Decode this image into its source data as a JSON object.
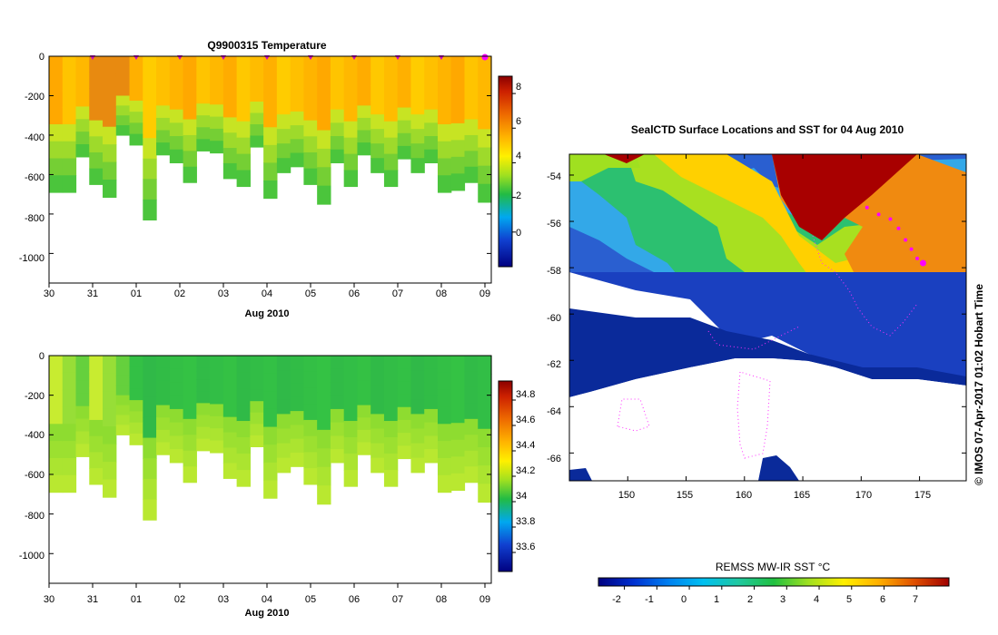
{
  "chart_data": [
    {
      "type": "heatmap",
      "title": "Q9900315  Temperature",
      "xlabel": "Aug 2010",
      "ylabel": "",
      "x_ticks": [
        "30",
        "31",
        "01",
        "02",
        "03",
        "04",
        "05",
        "06",
        "07",
        "08",
        "09"
      ],
      "x_range_days": [
        0,
        10
      ],
      "ylim": [
        -1150,
        0
      ],
      "y_ticks": [
        0,
        -200,
        -400,
        -600,
        -800,
        -1000
      ],
      "y_tick_labels": [
        "0",
        "-200",
        "-400",
        "-600",
        "-800",
        "-1000"
      ],
      "colorbar": {
        "min": -2,
        "max": 9,
        "ticks": [
          8,
          6,
          4,
          2,
          0
        ],
        "labels": [
          "8",
          "6",
          "4",
          "2",
          "0"
        ]
      },
      "profile_markers_days": [
        1,
        2,
        3,
        4,
        5,
        6,
        7,
        8,
        9,
        10
      ],
      "profile_max_depth_m": [
        690,
        690,
        510,
        650,
        715,
        400,
        450,
        830,
        500,
        540,
        640,
        480,
        490,
        620,
        660,
        460,
        720,
        590,
        560,
        650,
        750,
        540,
        660,
        500,
        590,
        660,
        520,
        590,
        540,
        690,
        680,
        640,
        740
      ],
      "surface_value_c": 5.5,
      "mid_value_c": 3.0,
      "deep_value_c": 2.0
    },
    {
      "type": "heatmap",
      "title": "",
      "xlabel": "Aug 2010",
      "ylabel": "",
      "x_ticks": [
        "30",
        "31",
        "01",
        "02",
        "03",
        "04",
        "05",
        "06",
        "07",
        "08",
        "09"
      ],
      "x_range_days": [
        0,
        10
      ],
      "ylim": [
        -1150,
        0
      ],
      "y_ticks": [
        0,
        -200,
        -400,
        -600,
        -800,
        -1000
      ],
      "y_tick_labels": [
        "0",
        "-200",
        "-400",
        "-600",
        "-800",
        "-1000"
      ],
      "colorbar": {
        "min": 33.45,
        "max": 34.95,
        "ticks": [
          34.8,
          34.6,
          34.4,
          34.2,
          34.0,
          33.8,
          33.6
        ],
        "labels": [
          "34.8",
          "34.6",
          "34.4",
          "34.2",
          "34",
          "33.8",
          "33.6"
        ]
      },
      "profile_max_depth_m": [
        690,
        690,
        510,
        650,
        715,
        400,
        450,
        830,
        500,
        540,
        640,
        480,
        490,
        620,
        660,
        460,
        720,
        590,
        560,
        650,
        750,
        540,
        660,
        500,
        590,
        660,
        520,
        590,
        540,
        690,
        680,
        640,
        740
      ],
      "surface_value": 34.1,
      "deep_value": 34.35
    },
    {
      "type": "heatmap",
      "title": "SealCTD Surface Locations and SST for 04 Aug 2010",
      "xlabel": "",
      "ylabel": "",
      "x_ticks": [
        150,
        155,
        160,
        165,
        170,
        175
      ],
      "x_tick_labels": [
        "150",
        "155",
        "160",
        "165",
        "170",
        "175"
      ],
      "xlim": [
        145.0,
        179.0
      ],
      "y_ticks": [
        -54,
        -56,
        -58,
        -60,
        -62,
        -64,
        -66
      ],
      "y_tick_labels": [
        "-54",
        "-56",
        "-58",
        "-60",
        "-62",
        "-64",
        "-66"
      ],
      "ylim": [
        -67.2,
        -53.1
      ],
      "colorbar": {
        "title": "REMSS MW-IR SST °C",
        "min": -2.8,
        "max": 8.0,
        "ticks": [
          -2,
          -1,
          0,
          1,
          2,
          3,
          4,
          5,
          6,
          7
        ],
        "labels": [
          "-2",
          "-1",
          "0",
          "1",
          "2",
          "3",
          "4",
          "5",
          "6",
          "7"
        ]
      },
      "seal_track_lon": [
        170.5,
        171.5,
        172.5,
        173.2,
        173.8,
        174.3,
        174.8,
        175.3
      ],
      "seal_track_lat": [
        -55.4,
        -55.7,
        -55.9,
        -56.3,
        -56.8,
        -57.2,
        -57.6,
        -57.8
      ],
      "credit": "© IMOS 07-Apr-2017 01:02 Hobart Time"
    }
  ]
}
